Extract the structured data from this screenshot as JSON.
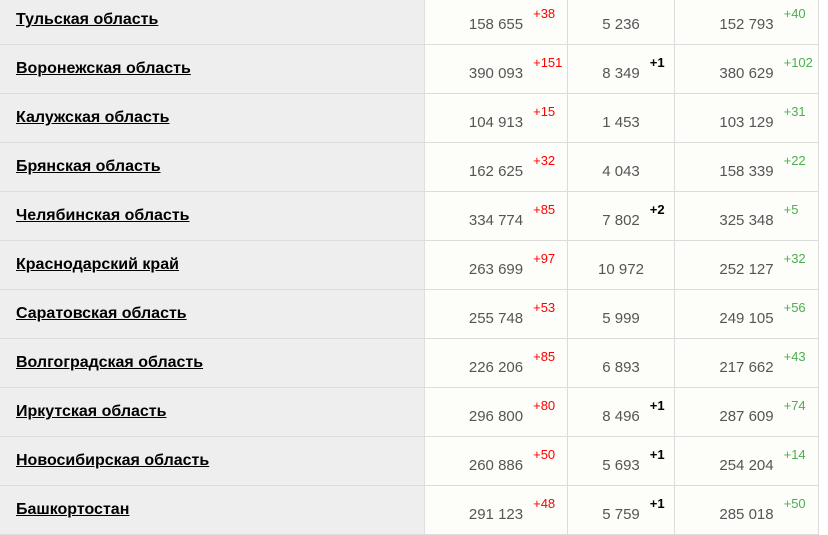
{
  "colors": {
    "cases_delta": "#ff0000",
    "deaths_delta": "#000000",
    "recovered_delta": "#4caf50"
  },
  "rows": [
    {
      "region": "Тульская область",
      "cases": "158 655",
      "cases_delta": "+38",
      "deaths": "5 236",
      "deaths_delta": "",
      "recovered": "152 793",
      "recovered_delta": "+40"
    },
    {
      "region": "Воронежская область",
      "cases": "390 093",
      "cases_delta": "+151",
      "deaths": "8 349",
      "deaths_delta": "+1",
      "recovered": "380 629",
      "recovered_delta": "+102"
    },
    {
      "region": "Калужская область",
      "cases": "104 913",
      "cases_delta": "+15",
      "deaths": "1 453",
      "deaths_delta": "",
      "recovered": "103 129",
      "recovered_delta": "+31"
    },
    {
      "region": "Брянская область",
      "cases": "162 625",
      "cases_delta": "+32",
      "deaths": "4 043",
      "deaths_delta": "",
      "recovered": "158 339",
      "recovered_delta": "+22"
    },
    {
      "region": "Челябинская область",
      "cases": "334 774",
      "cases_delta": "+85",
      "deaths": "7 802",
      "deaths_delta": "+2",
      "recovered": "325 348",
      "recovered_delta": "+5"
    },
    {
      "region": "Краснодарский край",
      "cases": "263 699",
      "cases_delta": "+97",
      "deaths": "10 972",
      "deaths_delta": "",
      "recovered": "252 127",
      "recovered_delta": "+32"
    },
    {
      "region": "Саратовская область",
      "cases": "255 748",
      "cases_delta": "+53",
      "deaths": "5 999",
      "deaths_delta": "",
      "recovered": "249 105",
      "recovered_delta": "+56"
    },
    {
      "region": "Волгоградская область",
      "cases": "226 206",
      "cases_delta": "+85",
      "deaths": "6 893",
      "deaths_delta": "",
      "recovered": "217 662",
      "recovered_delta": "+43"
    },
    {
      "region": "Иркутская область",
      "cases": "296 800",
      "cases_delta": "+80",
      "deaths": "8 496",
      "deaths_delta": "+1",
      "recovered": "287 609",
      "recovered_delta": "+74"
    },
    {
      "region": "Новосибирская область",
      "cases": "260 886",
      "cases_delta": "+50",
      "deaths": "5 693",
      "deaths_delta": "+1",
      "recovered": "254 204",
      "recovered_delta": "+14"
    },
    {
      "region": "Башкортостан",
      "cases": "291 123",
      "cases_delta": "+48",
      "deaths": "5 759",
      "deaths_delta": "+1",
      "recovered": "285 018",
      "recovered_delta": "+50"
    }
  ]
}
